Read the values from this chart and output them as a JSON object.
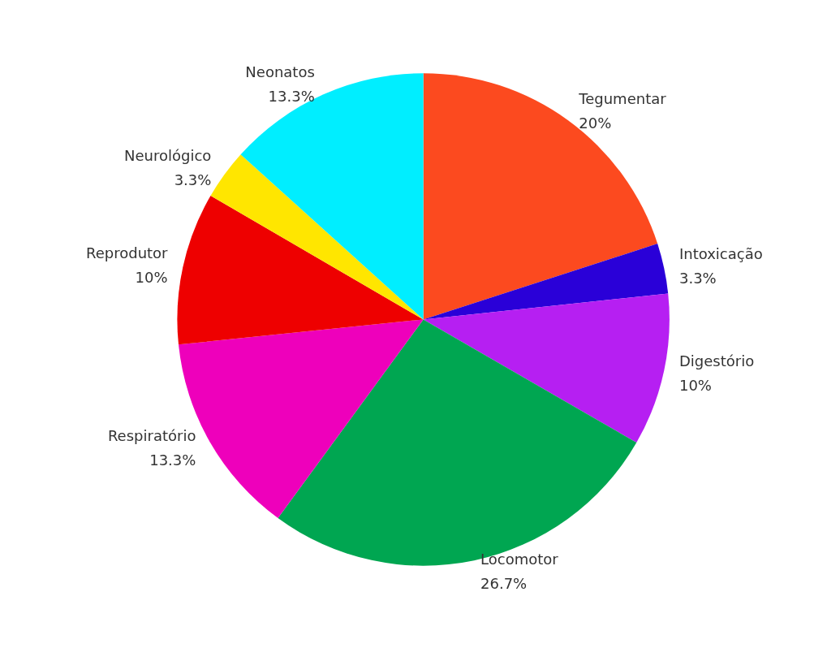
{
  "chart_data": {
    "type": "pie",
    "categories": [
      "Tegumentar",
      "Intoxicação",
      "Digestório",
      "Locomotor",
      "Respiratório",
      "Reprodutor",
      "Neurológico",
      "Neonatos"
    ],
    "values": [
      20,
      3.3,
      10,
      26.7,
      13.3,
      10,
      3.3,
      13.3
    ],
    "value_labels": [
      "20%",
      "3.3%",
      "10%",
      "26.7%",
      "13.3%",
      "10%",
      "3.3%",
      "13.3%"
    ],
    "colors": [
      "#fc4a1f",
      "#2a00d8",
      "#b61ff2",
      "#00a651",
      "#ee00bb",
      "#ee0000",
      "#ffe600",
      "#00eeff"
    ],
    "legend": false
  }
}
